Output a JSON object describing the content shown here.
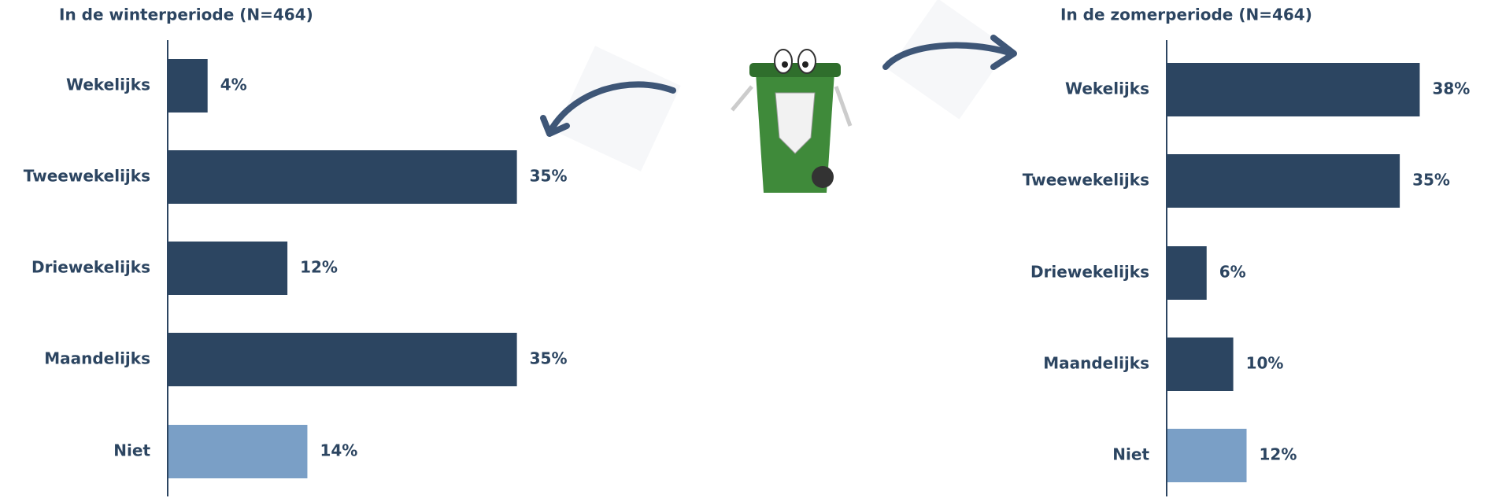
{
  "chart_data": [
    {
      "type": "bar",
      "orientation": "horizontal",
      "title": "In de winterperiode (N=464)",
      "categories": [
        "Wekelijks",
        "Tweewekelijks",
        "Driewekelijks",
        "Maandelijks",
        "Niet"
      ],
      "values": [
        4,
        35,
        12,
        35,
        14
      ],
      "value_labels": [
        "4%",
        "35%",
        "12%",
        "35%",
        "14%"
      ],
      "colors": [
        "#2c4561",
        "#2c4561",
        "#2c4561",
        "#2c4561",
        "#7a9fc6"
      ],
      "xlim": [
        0,
        40
      ]
    },
    {
      "type": "bar",
      "orientation": "horizontal",
      "title": "In de zomerperiode (N=464)",
      "categories": [
        "Wekelijks",
        "Tweewekelijks",
        "Driewekelijks",
        "Maandelijks",
        "Niet"
      ],
      "values": [
        38,
        35,
        6,
        10,
        12
      ],
      "value_labels": [
        "38%",
        "35%",
        "6%",
        "10%",
        "12%"
      ],
      "colors": [
        "#2c4561",
        "#2c4561",
        "#2c4561",
        "#2c4561",
        "#7a9fc6"
      ],
      "xlim": [
        0,
        50
      ]
    }
  ]
}
